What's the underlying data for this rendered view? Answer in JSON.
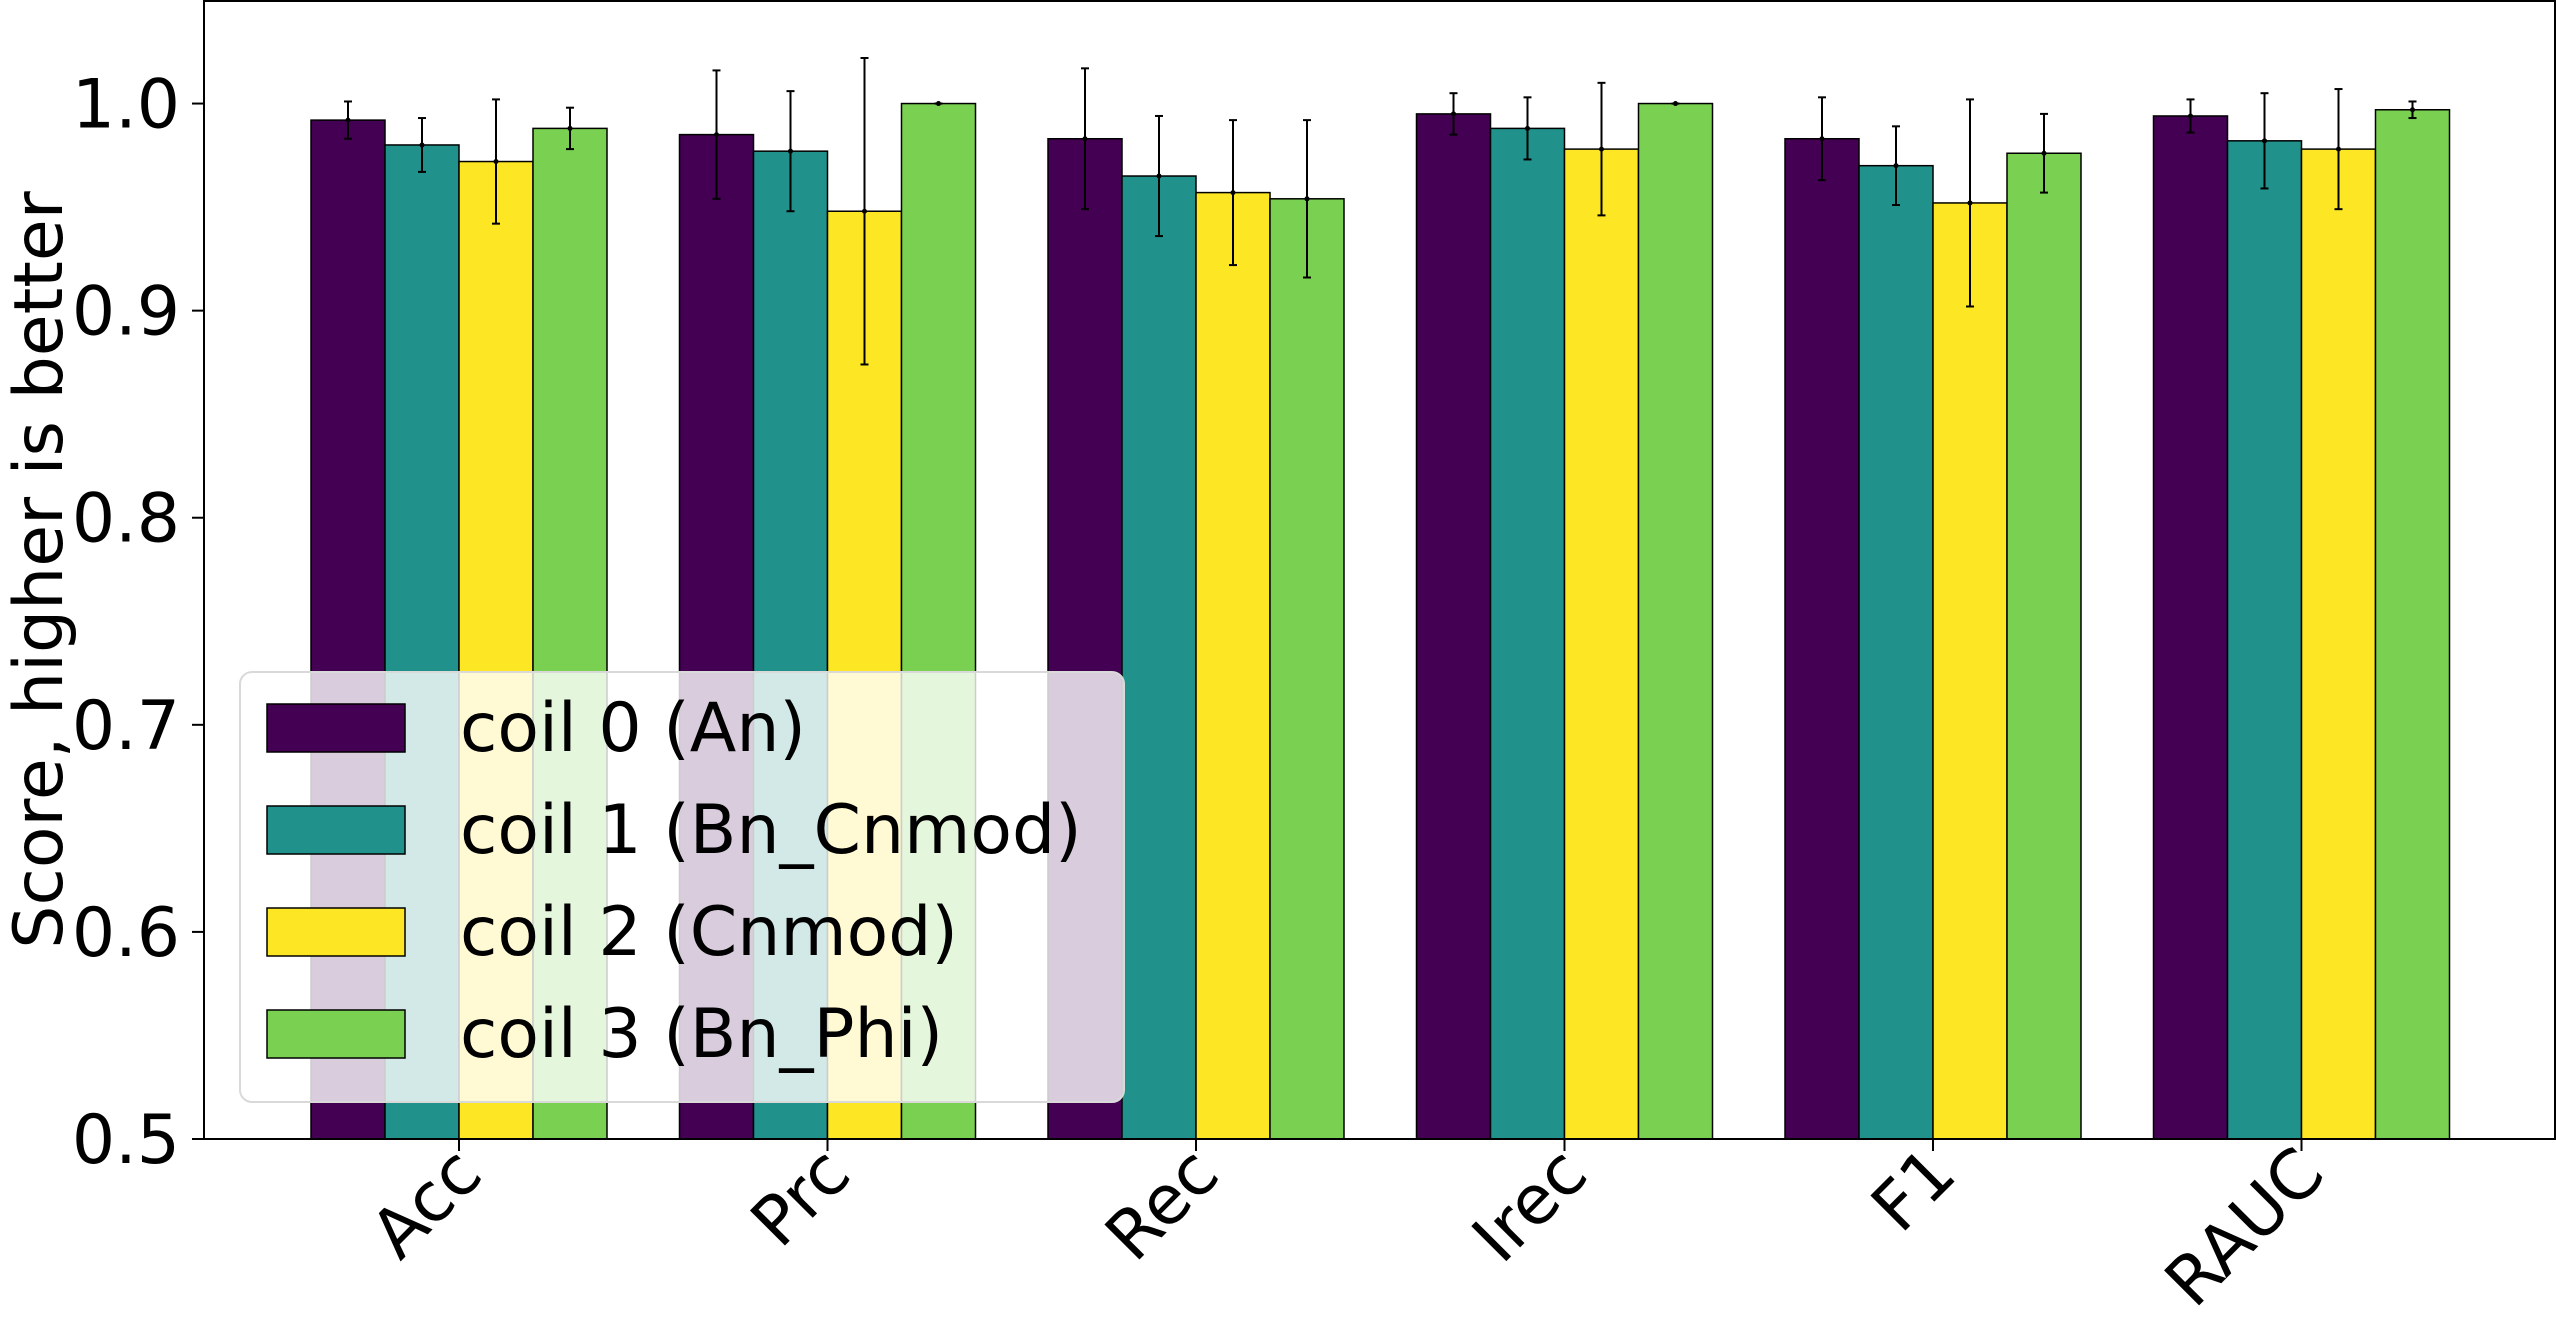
{
  "chart_data": {
    "type": "bar",
    "title": "",
    "xlabel": "",
    "ylabel": "Score, higher is better",
    "ylim": [
      0.5,
      1.05
    ],
    "yticks": [
      "0.5",
      "0.6",
      "0.7",
      "0.8",
      "0.9",
      "1.0"
    ],
    "categories": [
      "Acc",
      "Prc",
      "Rec",
      "Irec",
      "F1",
      "RAUC"
    ],
    "grid": false,
    "legend_position": "lower-left",
    "series": [
      {
        "name": "coil 0 (An)",
        "color": "#440154",
        "values": [
          0.992,
          0.985,
          0.983,
          0.995,
          0.983,
          0.994
        ],
        "errors": [
          0.009,
          0.031,
          0.034,
          0.01,
          0.02,
          0.008
        ]
      },
      {
        "name": "coil 1 (Bn_Cnmod)",
        "color": "#21918c",
        "values": [
          0.98,
          0.977,
          0.965,
          0.988,
          0.97,
          0.982
        ],
        "errors": [
          0.013,
          0.029,
          0.029,
          0.015,
          0.019,
          0.023
        ]
      },
      {
        "name": "coil 2 (Cnmod)",
        "color": "#fde725",
        "values": [
          0.972,
          0.948,
          0.957,
          0.978,
          0.952,
          0.978
        ],
        "errors": [
          0.03,
          0.074,
          0.035,
          0.032,
          0.05,
          0.029
        ]
      },
      {
        "name": "coil 3 (Bn_Phi)",
        "color": "#7ad151",
        "values": [
          0.988,
          1.0,
          0.954,
          1.0,
          0.976,
          0.997
        ],
        "errors": [
          0.01,
          0.0,
          0.038,
          0.0,
          0.019,
          0.004
        ]
      }
    ]
  }
}
